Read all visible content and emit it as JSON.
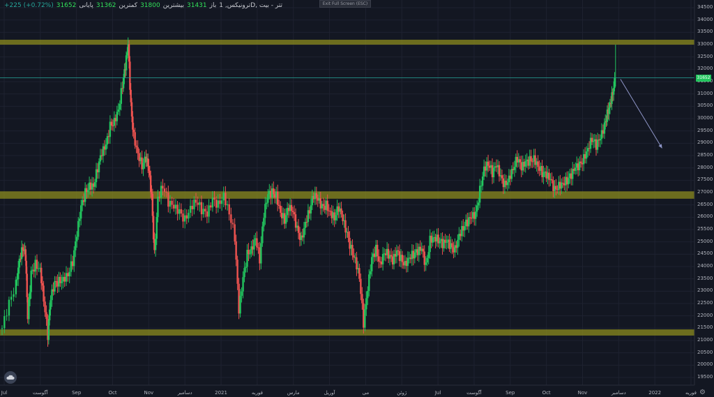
{
  "header": {
    "change": "+225 (+0.72%)",
    "close_value": "31652",
    "close_label": "پایانی",
    "low_value": "31362",
    "low_label": "کمترین",
    "high_value": "31800",
    "high_label": "بیشترین",
    "open_value": "31431",
    "open_label": "باز",
    "symbol": "ترونیکس, 1D, تتر - بیت"
  },
  "exit_fullscreen_label": "Exit Full Screen (ESC)",
  "current_price_badge": "31652",
  "colors": {
    "background": "#131722",
    "up": "#26a69a",
    "up_bright": "#22c55e",
    "down": "#ef5350",
    "zone": "#8b8b1e",
    "arrow": "#8f96c8"
  },
  "icons": {
    "logo": "cloud-icon",
    "settings": "gear-icon"
  },
  "chart_data": {
    "type": "candlestick",
    "y_axis": {
      "ticks": [
        "34500",
        "34000",
        "33500",
        "33000",
        "32500",
        "32000",
        "31500",
        "31000",
        "30500",
        "30000",
        "29500",
        "29000",
        "28500",
        "28000",
        "27500",
        "27000",
        "26500",
        "26000",
        "25500",
        "25000",
        "24500",
        "24000",
        "23500",
        "23000",
        "22500",
        "22000",
        "21500",
        "21000",
        "20500",
        "20000",
        "19500"
      ],
      "range": [
        19500,
        34500
      ]
    },
    "x_axis": {
      "ticks": [
        "Jul",
        "آگوست",
        "Sep",
        "Oct",
        "Nov",
        "دسامبر",
        "2021",
        "فوریه",
        "مارس",
        "آوریل",
        "می",
        "ژوئن",
        "Jul",
        "آگوست",
        "Sep",
        "Oct",
        "Nov",
        "دسامبر",
        "2022",
        "فوریه"
      ]
    },
    "zones": [
      {
        "from": 33000,
        "to": 33200
      },
      {
        "from": 26750,
        "to": 27050
      },
      {
        "from": 21200,
        "to": 21450
      }
    ],
    "current_price": 31652,
    "projection": {
      "from": {
        "t": 0.875,
        "price": 31600
      },
      "to": {
        "t": 0.935,
        "price": 28800
      }
    },
    "series": [
      [
        0.0,
        21500
      ],
      [
        0.01,
        22500
      ],
      [
        0.02,
        23300
      ],
      [
        0.025,
        24300
      ],
      [
        0.03,
        24800
      ],
      [
        0.034,
        24400
      ],
      [
        0.037,
        21900
      ],
      [
        0.042,
        23700
      ],
      [
        0.048,
        24100
      ],
      [
        0.055,
        23900
      ],
      [
        0.06,
        22700
      ],
      [
        0.066,
        21200
      ],
      [
        0.07,
        22700
      ],
      [
        0.076,
        23300
      ],
      [
        0.082,
        23400
      ],
      [
        0.088,
        23500
      ],
      [
        0.095,
        23700
      ],
      [
        0.102,
        24200
      ],
      [
        0.108,
        25300
      ],
      [
        0.114,
        26400
      ],
      [
        0.12,
        27000
      ],
      [
        0.126,
        27300
      ],
      [
        0.132,
        27300
      ],
      [
        0.138,
        28000
      ],
      [
        0.144,
        28600
      ],
      [
        0.15,
        28900
      ],
      [
        0.156,
        29700
      ],
      [
        0.162,
        29900
      ],
      [
        0.168,
        30400
      ],
      [
        0.174,
        31400
      ],
      [
        0.178,
        32100
      ],
      [
        0.182,
        33000
      ],
      [
        0.186,
        30500
      ],
      [
        0.19,
        29300
      ],
      [
        0.196,
        28600
      ],
      [
        0.202,
        28100
      ],
      [
        0.208,
        28400
      ],
      [
        0.212,
        27900
      ],
      [
        0.216,
        26800
      ],
      [
        0.22,
        24500
      ],
      [
        0.225,
        26800
      ],
      [
        0.232,
        27300
      ],
      [
        0.24,
        26600
      ],
      [
        0.248,
        26400
      ],
      [
        0.256,
        26200
      ],
      [
        0.264,
        25900
      ],
      [
        0.272,
        26400
      ],
      [
        0.28,
        26700
      ],
      [
        0.288,
        26300
      ],
      [
        0.296,
        26100
      ],
      [
        0.304,
        26700
      ],
      [
        0.312,
        26500
      ],
      [
        0.32,
        26900
      ],
      [
        0.328,
        26200
      ],
      [
        0.336,
        25200
      ],
      [
        0.342,
        22200
      ],
      [
        0.348,
        23500
      ],
      [
        0.354,
        24500
      ],
      [
        0.36,
        24700
      ],
      [
        0.366,
        25200
      ],
      [
        0.372,
        24300
      ],
      [
        0.378,
        26100
      ],
      [
        0.384,
        26900
      ],
      [
        0.39,
        27000
      ],
      [
        0.396,
        26900
      ],
      [
        0.402,
        26200
      ],
      [
        0.408,
        25900
      ],
      [
        0.414,
        26400
      ],
      [
        0.42,
        26200
      ],
      [
        0.426,
        25500
      ],
      [
        0.432,
        25100
      ],
      [
        0.438,
        25800
      ],
      [
        0.444,
        26300
      ],
      [
        0.45,
        26900
      ],
      [
        0.456,
        26700
      ],
      [
        0.462,
        26400
      ],
      [
        0.468,
        26500
      ],
      [
        0.474,
        26200
      ],
      [
        0.48,
        26000
      ],
      [
        0.486,
        26400
      ],
      [
        0.492,
        25900
      ],
      [
        0.498,
        25300
      ],
      [
        0.504,
        24700
      ],
      [
        0.51,
        24300
      ],
      [
        0.516,
        23600
      ],
      [
        0.522,
        21700
      ],
      [
        0.528,
        23100
      ],
      [
        0.534,
        24300
      ],
      [
        0.54,
        24700
      ],
      [
        0.546,
        24100
      ],
      [
        0.552,
        24600
      ],
      [
        0.558,
        24500
      ],
      [
        0.564,
        24200
      ],
      [
        0.57,
        24600
      ],
      [
        0.576,
        24300
      ],
      [
        0.582,
        24100
      ],
      [
        0.588,
        24400
      ],
      [
        0.594,
        24500
      ],
      [
        0.6,
        24600
      ],
      [
        0.606,
        24700
      ],
      [
        0.612,
        24000
      ],
      [
        0.618,
        25100
      ],
      [
        0.624,
        25200
      ],
      [
        0.63,
        25100
      ],
      [
        0.636,
        24900
      ],
      [
        0.642,
        25000
      ],
      [
        0.648,
        24800
      ],
      [
        0.654,
        24700
      ],
      [
        0.66,
        25300
      ],
      [
        0.666,
        25600
      ],
      [
        0.672,
        25800
      ],
      [
        0.678,
        26000
      ],
      [
        0.684,
        26100
      ],
      [
        0.69,
        27100
      ],
      [
        0.696,
        28000
      ],
      [
        0.702,
        28200
      ],
      [
        0.708,
        27800
      ],
      [
        0.714,
        28100
      ],
      [
        0.72,
        27600
      ],
      [
        0.726,
        27300
      ],
      [
        0.732,
        27600
      ],
      [
        0.738,
        28000
      ],
      [
        0.744,
        28400
      ],
      [
        0.75,
        28000
      ],
      [
        0.756,
        28200
      ],
      [
        0.762,
        28300
      ],
      [
        0.768,
        28400
      ],
      [
        0.774,
        28100
      ],
      [
        0.78,
        27800
      ],
      [
        0.786,
        27700
      ],
      [
        0.792,
        27500
      ],
      [
        0.798,
        27100
      ],
      [
        0.804,
        27300
      ],
      [
        0.81,
        27400
      ],
      [
        0.816,
        27500
      ],
      [
        0.822,
        27700
      ],
      [
        0.828,
        28000
      ],
      [
        0.834,
        28100
      ],
      [
        0.84,
        28400
      ],
      [
        0.846,
        28800
      ],
      [
        0.852,
        29200
      ],
      [
        0.858,
        28900
      ],
      [
        0.864,
        29200
      ],
      [
        0.87,
        29700
      ],
      [
        0.874,
        30200
      ],
      [
        0.878,
        30600
      ],
      [
        0.882,
        31100
      ],
      [
        0.886,
        31650
      ]
    ]
  }
}
